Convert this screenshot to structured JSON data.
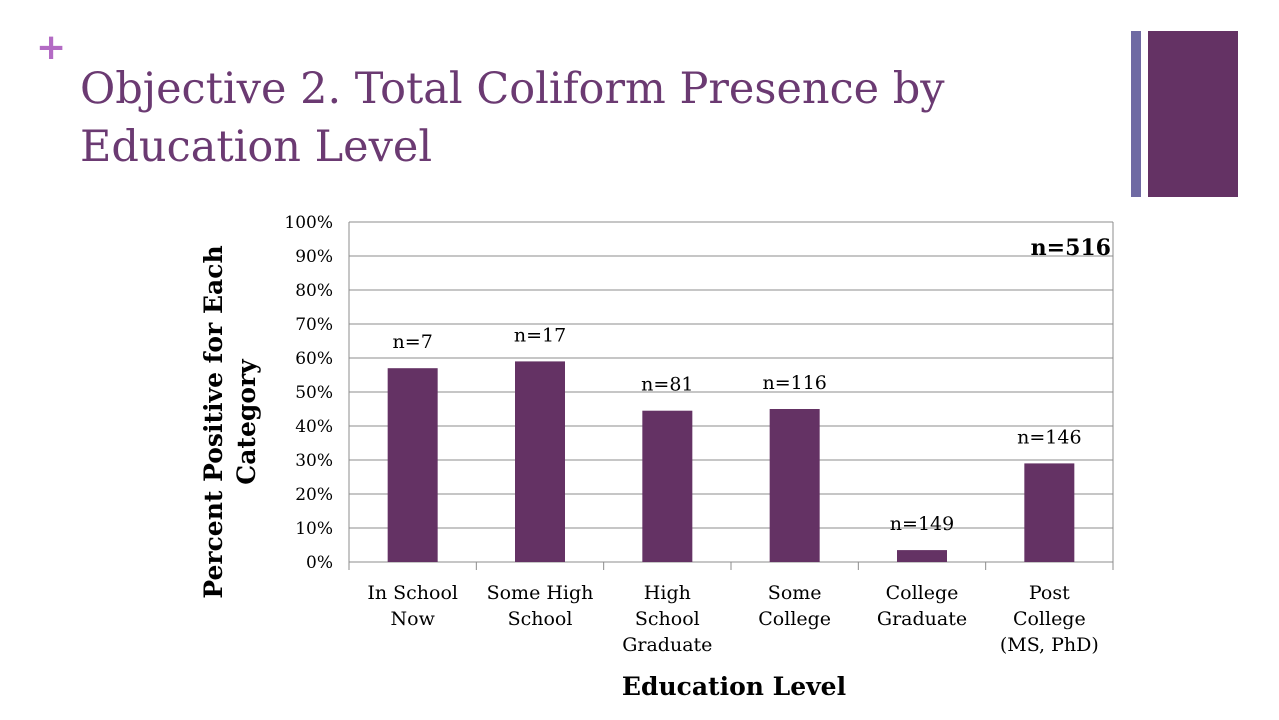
{
  "slide": {
    "bullet": "+",
    "title_line1": "Objective 2. Total Coliform Presence by",
    "title_line2": "Education Level"
  },
  "colors": {
    "bar": "#643264",
    "title": "#6b3a72",
    "accent_plus": "#b36bc4",
    "deco_thin": "#6f6aa3",
    "deco_thick": "#643264"
  },
  "chart_data": {
    "type": "bar",
    "categories": [
      [
        "In School",
        "Now"
      ],
      [
        "Some High",
        "School"
      ],
      [
        "High",
        "School",
        "Graduate"
      ],
      [
        "Some",
        "College"
      ],
      [
        "College",
        "Graduate"
      ],
      [
        "Post",
        "College",
        "(MS, PhD)"
      ]
    ],
    "values": [
      57,
      59,
      44.5,
      45,
      3.5,
      29
    ],
    "value_unit": "%",
    "bar_labels": [
      "n=7",
      "n=17",
      "n=81",
      "n=116",
      "n=149",
      "n=146"
    ],
    "annotation": "n=516",
    "xlabel": "Education Level",
    "ylabel_lines": [
      "Percent Positive for Each",
      "Category"
    ],
    "ylim": [
      0,
      100
    ],
    "yticks": [
      0,
      10,
      20,
      30,
      40,
      50,
      60,
      70,
      80,
      90,
      100
    ],
    "ytick_labels": [
      "0%",
      "10%",
      "20%",
      "30%",
      "40%",
      "50%",
      "60%",
      "70%",
      "80%",
      "90%",
      "100%"
    ],
    "grid": true,
    "legend": "none"
  }
}
